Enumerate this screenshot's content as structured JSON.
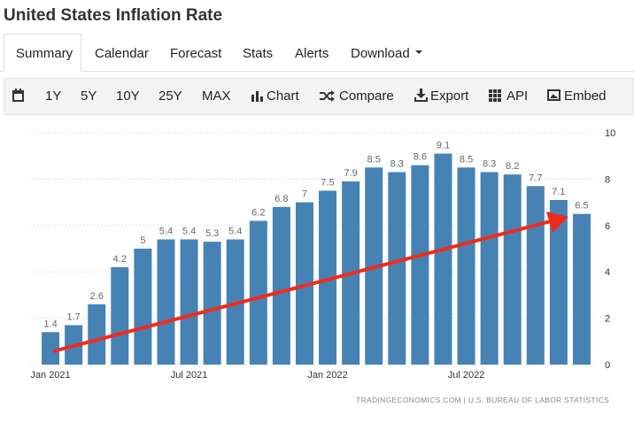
{
  "page": {
    "title": "United States Inflation Rate",
    "tabs": [
      "Summary",
      "Calendar",
      "Forecast",
      "Stats",
      "Alerts",
      "Download"
    ],
    "toolbar": [
      "1Y",
      "5Y",
      "10Y",
      "25Y",
      "MAX",
      "Chart",
      "Compare",
      "Export",
      "API",
      "Embed"
    ]
  },
  "chart_data": {
    "type": "bar",
    "categories": [
      "Jan 2021",
      null,
      null,
      null,
      null,
      null,
      "Jul 2021",
      null,
      null,
      null,
      null,
      null,
      "Jan 2022",
      null,
      null,
      null,
      null,
      null,
      "Jul 2022",
      null,
      null,
      null,
      null,
      null
    ],
    "values": [
      1.4,
      1.7,
      2.6,
      4.2,
      5,
      5.4,
      5.4,
      5.3,
      5.4,
      6.2,
      6.8,
      7,
      7.5,
      7.9,
      8.5,
      8.3,
      8.6,
      9.1,
      8.5,
      8.3,
      8.2,
      7.7,
      7.1,
      6.5
    ],
    "color": "#4682b4",
    "ylim": [
      0,
      10
    ],
    "yticks": [
      0,
      2,
      4,
      6,
      8,
      10
    ],
    "grid": true,
    "source": "TRADINGECONOMICS.COM | U.S. BUREAU OF LABOR STATISTICS"
  }
}
